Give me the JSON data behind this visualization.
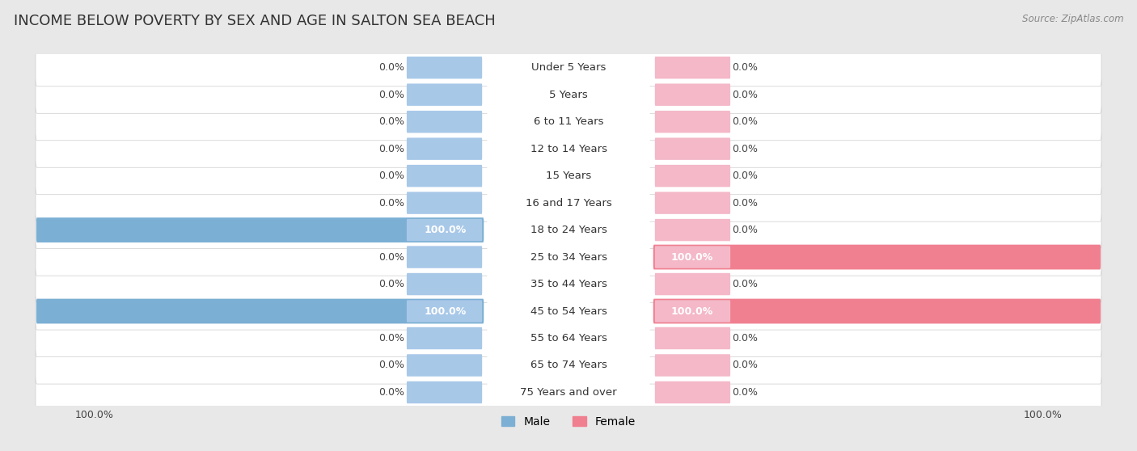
{
  "title": "INCOME BELOW POVERTY BY SEX AND AGE IN SALTON SEA BEACH",
  "source": "Source: ZipAtlas.com",
  "categories": [
    "Under 5 Years",
    "5 Years",
    "6 to 11 Years",
    "12 to 14 Years",
    "15 Years",
    "16 and 17 Years",
    "18 to 24 Years",
    "25 to 34 Years",
    "35 to 44 Years",
    "45 to 54 Years",
    "55 to 64 Years",
    "65 to 74 Years",
    "75 Years and over"
  ],
  "male_values": [
    0.0,
    0.0,
    0.0,
    0.0,
    0.0,
    0.0,
    100.0,
    0.0,
    0.0,
    100.0,
    0.0,
    0.0,
    0.0
  ],
  "female_values": [
    0.0,
    0.0,
    0.0,
    0.0,
    0.0,
    0.0,
    0.0,
    100.0,
    0.0,
    100.0,
    0.0,
    0.0,
    0.0
  ],
  "male_color": "#7bafd4",
  "female_color": "#f08090",
  "male_stub_color": "#a8c8e8",
  "female_stub_color": "#f4b8c8",
  "row_panel_color": "#ffffff",
  "background_color": "#e8e8e8",
  "max_value": 100.0,
  "title_fontsize": 13,
  "label_fontsize": 9.5,
  "annotation_fontsize": 9,
  "legend_fontsize": 10,
  "value_text_color_zero": "#444444",
  "value_text_color_nonzero": "#ffffff"
}
